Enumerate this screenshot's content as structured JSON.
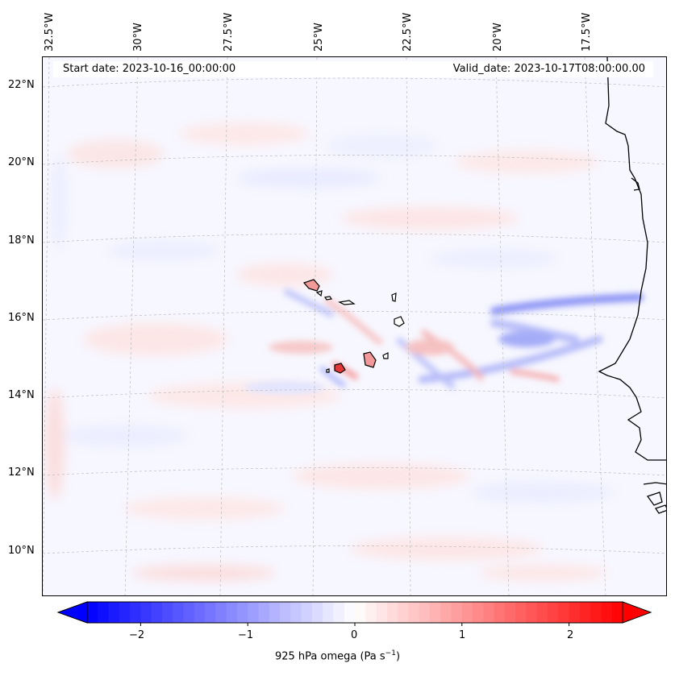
{
  "map": {
    "start_date": "Start date: 2023-10-16_00:00:00",
    "valid_date": "Valid_date: 2023-10-17T08:00:00.00",
    "lon_ticks": [
      "32.5°W",
      "30°W",
      "27.5°W",
      "25°W",
      "22.5°W",
      "20°W",
      "17.5°W"
    ],
    "lat_ticks": [
      "22°N",
      "20°N",
      "18°N",
      "16°N",
      "14°N",
      "12°N",
      "10°N"
    ],
    "lon_range": [
      -33.5,
      -15.5
    ],
    "lat_range": [
      9,
      22.8
    ],
    "features": [
      "Cape Verde islands",
      "West African coastline",
      "omega band near 16°N",
      "omega band near 14–15°N"
    ],
    "gridlines": true
  },
  "colorbar": {
    "label_main": "925 hPa omega (Pa s",
    "label_sup": "−1",
    "label_end": ")",
    "ticks": [
      "−2",
      "−1",
      "0",
      "1",
      "2"
    ],
    "range": [
      -2.5,
      2.5
    ],
    "colors": {
      "negative": "#0000ff",
      "zero": "#ffffff",
      "positive": "#ff0000"
    }
  }
}
